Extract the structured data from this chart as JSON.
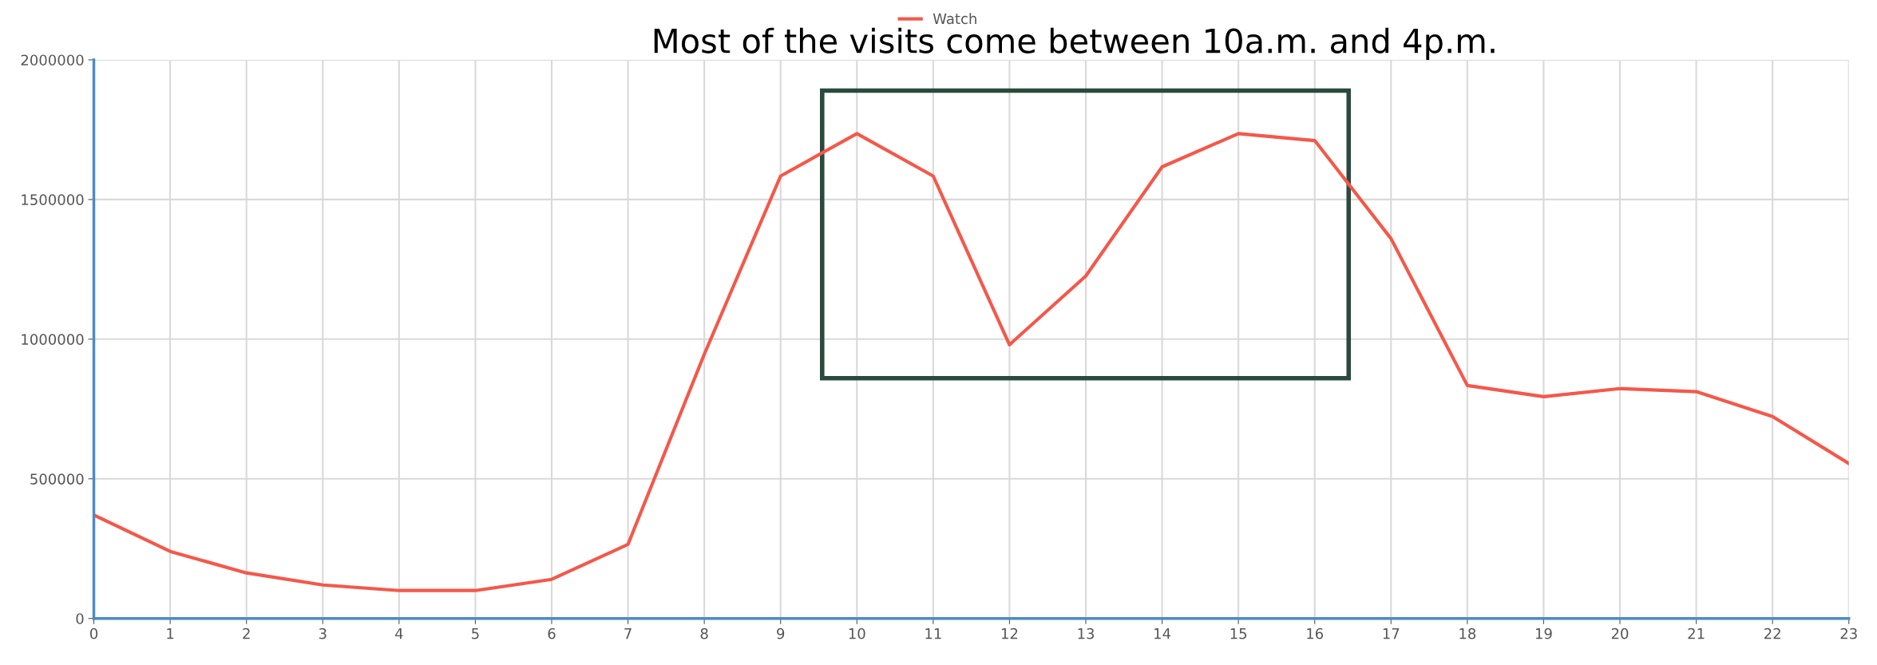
{
  "chart_data": {
    "type": "line",
    "title": "Most of the visits come between 10a.m. and 4p.m.",
    "x": [
      0,
      1,
      2,
      3,
      4,
      5,
      6,
      7,
      8,
      9,
      10,
      11,
      12,
      13,
      14,
      15,
      16,
      17,
      18,
      19,
      20,
      21,
      22,
      23
    ],
    "series": [
      {
        "name": "Watch",
        "color": "#f4584a",
        "values": [
          370000,
          240000,
          163000,
          120000,
          100000,
          100000,
          140000,
          265000,
          946000,
          1584000,
          1736000,
          1584000,
          980000,
          1226000,
          1617000,
          1736000,
          1711000,
          1360000,
          834000,
          794000,
          823000,
          812000,
          723000,
          555000
        ]
      }
    ],
    "xlim": [
      0,
      23
    ],
    "xticks": [
      0,
      1,
      2,
      3,
      4,
      5,
      6,
      7,
      8,
      9,
      10,
      11,
      12,
      13,
      14,
      15,
      16,
      17,
      18,
      19,
      20,
      21,
      22,
      23
    ],
    "ylim": [
      0,
      2000000
    ],
    "yticks": [
      0,
      500000,
      1000000,
      1500000,
      2000000
    ],
    "grid": true,
    "legend": "top",
    "marker": "none",
    "line_style": "solid"
  }
}
